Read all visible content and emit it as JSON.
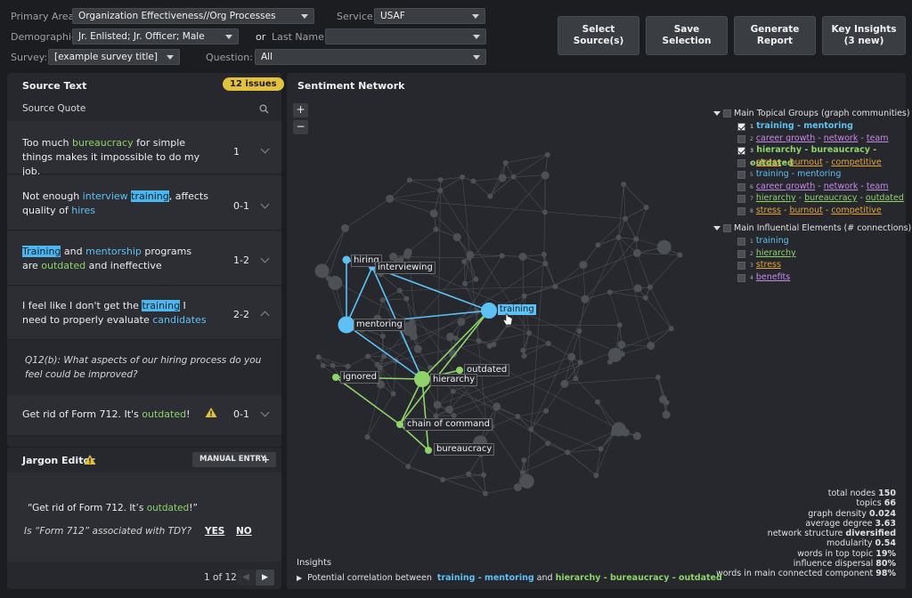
{
  "filters": {
    "primary_area_label": "Primary Area:",
    "primary_area_value": "Organization Effectiveness//Org Processes",
    "service_label": "Service:",
    "service_value": "USAF",
    "demographic_label": "Demographic:",
    "demographic_value": "Jr. Enlisted; Jr. Officer; Male",
    "or_label": "or",
    "last_name_label": "Last Name:",
    "last_name_value": "",
    "survey_label": "Survey:",
    "survey_value": "[example survey title]",
    "question_label": "Question:",
    "question_value": "All"
  },
  "toolbar": {
    "select_sources": "Select\nSource(s)",
    "save_selection": "Save\nSelection",
    "generate_report": "Generate\nReport",
    "key_insights": "Key Insights\n(3 new)"
  },
  "source_panel": {
    "title": "Source Text",
    "issues_badge": "12 issues",
    "column_header": "Source Quote",
    "quotes": [
      {
        "num": "1"
      },
      {
        "num": "0-1"
      },
      {
        "num": "1-2"
      },
      {
        "num": "2-2"
      },
      {
        "num": "0-1"
      }
    ],
    "question_text": "Q12(b):  What aspects of our hiring process do you feel could be improved?"
  },
  "jargon": {
    "title": "Jargon Editor",
    "manual_entry": "MANUAL ENTRY",
    "quote_open": "“Get rid of Form 712. It’s ",
    "quote_green": "outdated",
    "quote_close": "!”",
    "question": "Is “Form 712” associated with TDY?",
    "yes": "YES",
    "no": "NO",
    "pager": "1 of 12"
  },
  "network": {
    "title": "Sentiment Network",
    "zoom_in": "+",
    "zoom_out": "−",
    "nodes": {
      "hiring": "hiring",
      "interviewing": "interviewing",
      "training": "training",
      "mentoring": "mentoring",
      "outdated": "outdated",
      "ignored": "ignored",
      "hierarchy": "hierarchy",
      "chain": "chain of command",
      "bureaucracy": "bureaucracy"
    },
    "groups_title": "Main Topical Groups (graph communities)",
    "influential_title": "Main Influential Elements (# connections)",
    "insights_label": "Insights",
    "insight_text": "Potential correlation between",
    "insight_and": "and",
    "insight_a": "training - mentoring",
    "insight_b": "hierarchy - bureaucracy - outdated"
  },
  "stats": [
    {
      "label": "total nodes",
      "value": "150"
    },
    {
      "label": "topics",
      "value": "66"
    },
    {
      "label": "graph density",
      "value": "0.024"
    },
    {
      "label": "average degree",
      "value": "3.63"
    },
    {
      "label": "network structure",
      "value": "diversified"
    },
    {
      "label": "modularity",
      "value": "0.54"
    },
    {
      "label": "words in top topic",
      "value": "19%"
    },
    {
      "label": "influence dispersal",
      "value": "80%"
    },
    {
      "label": "words in main connected component",
      "value": "98%"
    }
  ],
  "colors": {
    "blue": "#5ec1f4",
    "green": "#8fd36a",
    "orange": "#e6a33a",
    "purple": "#c88ae6",
    "badge": "#e2c13d"
  }
}
